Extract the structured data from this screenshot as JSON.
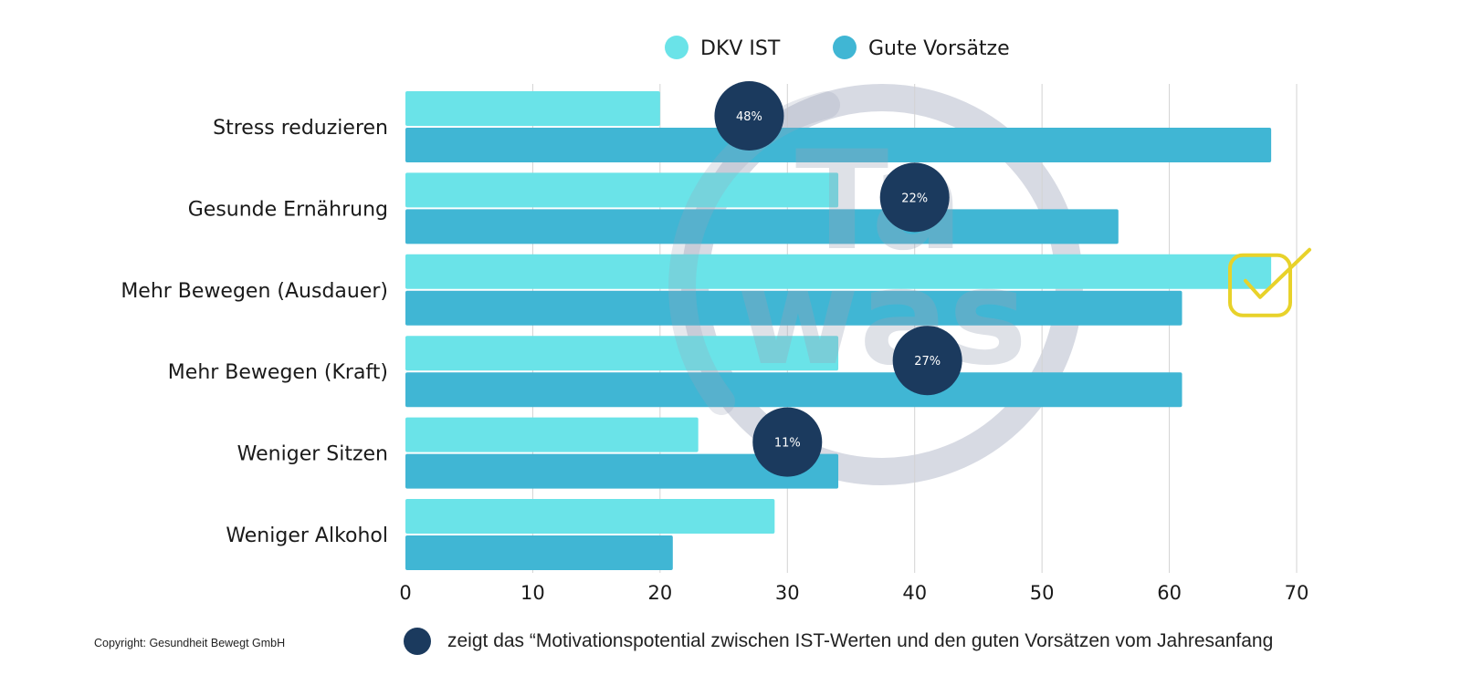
{
  "chart_data": {
    "type": "bar",
    "orientation": "horizontal",
    "title": "",
    "xlabel": "",
    "ylabel": "",
    "xlim": [
      0,
      70
    ],
    "x_ticks": [
      0,
      10,
      20,
      30,
      40,
      50,
      60,
      70
    ],
    "grid": "vertical",
    "legend_position": "top",
    "categories": [
      "Stress reduzieren",
      "Gesunde Ernährung",
      "Mehr Bewegen (Ausdauer)",
      "Mehr Bewegen (Kraft)",
      "Weniger Sitzen",
      "Weniger Alkohol"
    ],
    "series": [
      {
        "name": "DKV IST",
        "color": "#6ae3e8",
        "values": [
          20,
          34,
          68,
          34,
          23,
          29
        ]
      },
      {
        "name": "Gute Vorsätze",
        "color": "#40b6d4",
        "values": [
          68,
          56,
          61,
          61,
          34,
          21
        ]
      }
    ],
    "annotations": {
      "bubbles": [
        {
          "category": "Stress reduzieren",
          "label": "48%",
          "x": 27
        },
        {
          "category": "Gesunde Ernährung",
          "label": "22%",
          "x": 40
        },
        {
          "category": "Mehr Bewegen (Kraft)",
          "label": "27%",
          "x": 41
        },
        {
          "category": "Weniger Sitzen",
          "label": "11%",
          "x": 30
        }
      ],
      "bubble_color": "#1b3a5e",
      "checkmark": {
        "category": "Mehr Bewegen (Ausdauer)",
        "color": "#e8d22a"
      }
    },
    "watermark": {
      "text_top": "Ta",
      "text_bottom": "was",
      "color": "#9aa3b8"
    }
  },
  "footer": {
    "copyright": "Copyright: Gesundheit Bewegt GmbH",
    "note": "zeigt das “Motivationspotential zwischen IST-Werten und den guten Vorsätzen vom Jahresanfang"
  }
}
